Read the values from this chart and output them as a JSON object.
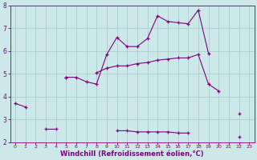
{
  "line1_x": [
    0,
    1,
    2,
    3,
    4,
    5,
    6,
    7,
    8,
    9,
    10,
    11,
    12,
    13,
    14,
    15,
    16,
    17,
    18,
    19,
    20,
    21,
    22,
    23
  ],
  "line1_y": [
    3.7,
    3.55,
    null,
    null,
    null,
    4.85,
    4.85,
    4.65,
    4.55,
    5.85,
    6.6,
    6.2,
    6.2,
    6.55,
    7.55,
    7.3,
    7.25,
    7.2,
    7.8,
    5.9,
    null,
    null,
    null,
    null
  ],
  "line2_x": [
    0,
    1,
    2,
    3,
    4,
    5,
    6,
    7,
    8,
    9,
    10,
    11,
    12,
    13,
    14,
    15,
    16,
    17,
    18,
    19,
    20,
    21,
    22,
    23
  ],
  "line2_y": [
    null,
    null,
    null,
    null,
    null,
    4.85,
    null,
    null,
    5.05,
    5.25,
    5.35,
    5.35,
    5.45,
    5.5,
    5.6,
    5.65,
    5.7,
    5.7,
    5.85,
    4.55,
    4.25,
    null,
    3.25,
    null
  ],
  "line3_x": [
    2,
    3,
    4,
    5,
    6,
    7,
    8,
    9,
    10,
    11,
    12,
    13,
    14,
    15,
    16,
    17,
    18,
    19,
    20,
    21,
    22,
    23
  ],
  "line3_y": [
    null,
    2.6,
    2.6,
    null,
    null,
    null,
    null,
    null,
    2.5,
    2.5,
    2.45,
    2.45,
    2.45,
    2.45,
    2.4,
    2.4,
    null,
    null,
    null,
    null,
    2.25,
    null
  ],
  "bg_color": "#cce8e8",
  "line_color": "#800080",
  "grid_color": "#aacccc",
  "xlabel": "Windchill (Refroidissement éolien,°C)",
  "xlabel_color": "#800080",
  "tick_color": "#800080",
  "xmin": -0.5,
  "xmax": 23.5,
  "ymin": 2,
  "ymax": 8,
  "xticks": [
    0,
    1,
    2,
    3,
    4,
    5,
    6,
    7,
    8,
    9,
    10,
    11,
    12,
    13,
    14,
    15,
    16,
    17,
    18,
    19,
    20,
    21,
    22,
    23
  ],
  "yticks": [
    2,
    3,
    4,
    5,
    6,
    7,
    8
  ]
}
